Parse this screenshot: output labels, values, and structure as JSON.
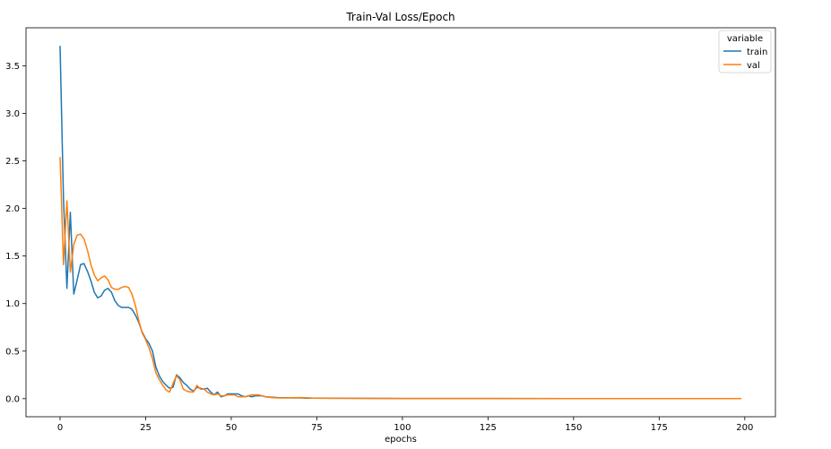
{
  "chart_data": {
    "type": "line",
    "title": "Train-Val Loss/Epoch",
    "xlabel": "epochs",
    "ylabel": "",
    "xlim": [
      -9.95,
      208.95
    ],
    "ylim": [
      -0.19,
      3.9
    ],
    "xticks": [
      0,
      25,
      50,
      75,
      100,
      125,
      150,
      175,
      200
    ],
    "yticks": [
      0.0,
      0.5,
      1.0,
      1.5,
      2.0,
      2.5,
      3.0,
      3.5
    ],
    "ytick_labels": [
      "0.0",
      "0.5",
      "1.0",
      "1.5",
      "2.0",
      "2.5",
      "3.0",
      "3.5"
    ],
    "grid": false,
    "legend": {
      "title": "variable",
      "position": "top-right"
    },
    "series": [
      {
        "name": "train",
        "color": "#1f77b4",
        "points": [
          [
            0,
            3.71
          ],
          [
            1,
            2.1
          ],
          [
            2,
            1.16
          ],
          [
            3,
            1.96
          ],
          [
            4,
            1.1
          ],
          [
            5,
            1.25
          ],
          [
            6,
            1.41
          ],
          [
            7,
            1.42
          ],
          [
            8,
            1.34
          ],
          [
            9,
            1.24
          ],
          [
            10,
            1.12
          ],
          [
            11,
            1.06
          ],
          [
            12,
            1.08
          ],
          [
            13,
            1.14
          ],
          [
            14,
            1.16
          ],
          [
            15,
            1.12
          ],
          [
            16,
            1.03
          ],
          [
            17,
            0.98
          ],
          [
            18,
            0.96
          ],
          [
            19,
            0.96
          ],
          [
            20,
            0.96
          ],
          [
            21,
            0.94
          ],
          [
            22,
            0.88
          ],
          [
            23,
            0.8
          ],
          [
            24,
            0.7
          ],
          [
            25,
            0.63
          ],
          [
            26,
            0.58
          ],
          [
            27,
            0.5
          ],
          [
            28,
            0.33
          ],
          [
            29,
            0.24
          ],
          [
            30,
            0.18
          ],
          [
            31,
            0.14
          ],
          [
            32,
            0.11
          ],
          [
            33,
            0.12
          ],
          [
            34,
            0.25
          ],
          [
            35,
            0.22
          ],
          [
            36,
            0.17
          ],
          [
            37,
            0.14
          ],
          [
            38,
            0.1
          ],
          [
            39,
            0.08
          ],
          [
            40,
            0.12
          ],
          [
            41,
            0.11
          ],
          [
            42,
            0.1
          ],
          [
            43,
            0.11
          ],
          [
            44,
            0.07
          ],
          [
            45,
            0.04
          ],
          [
            46,
            0.07
          ],
          [
            47,
            0.02
          ],
          [
            48,
            0.03
          ],
          [
            49,
            0.05
          ],
          [
            50,
            0.05
          ],
          [
            51,
            0.05
          ],
          [
            52,
            0.05
          ],
          [
            53,
            0.03
          ],
          [
            54,
            0.02
          ],
          [
            55,
            0.03
          ],
          [
            56,
            0.02
          ],
          [
            57,
            0.03
          ],
          [
            58,
            0.03
          ],
          [
            59,
            0.03
          ],
          [
            60,
            0.02
          ],
          [
            62,
            0.015
          ],
          [
            64,
            0.01
          ],
          [
            66,
            0.01
          ],
          [
            68,
            0.008
          ],
          [
            70,
            0.008
          ],
          [
            72,
            0.006
          ],
          [
            75,
            0.005
          ],
          [
            80,
            0.004
          ],
          [
            90,
            0.003
          ],
          [
            100,
            0.002
          ],
          [
            125,
            0.002
          ],
          [
            150,
            0.001
          ],
          [
            175,
            0.001
          ],
          [
            199,
            0.001
          ]
        ]
      },
      {
        "name": "val",
        "color": "#ff7f0e",
        "points": [
          [
            0,
            2.54
          ],
          [
            1,
            1.41
          ],
          [
            2,
            2.08
          ],
          [
            3,
            1.33
          ],
          [
            4,
            1.62
          ],
          [
            5,
            1.72
          ],
          [
            6,
            1.73
          ],
          [
            7,
            1.68
          ],
          [
            8,
            1.56
          ],
          [
            9,
            1.41
          ],
          [
            10,
            1.3
          ],
          [
            11,
            1.24
          ],
          [
            12,
            1.27
          ],
          [
            13,
            1.29
          ],
          [
            14,
            1.25
          ],
          [
            15,
            1.17
          ],
          [
            16,
            1.15
          ],
          [
            17,
            1.15
          ],
          [
            18,
            1.17
          ],
          [
            19,
            1.18
          ],
          [
            20,
            1.17
          ],
          [
            21,
            1.1
          ],
          [
            22,
            0.98
          ],
          [
            23,
            0.82
          ],
          [
            24,
            0.69
          ],
          [
            25,
            0.62
          ],
          [
            26,
            0.53
          ],
          [
            27,
            0.42
          ],
          [
            28,
            0.27
          ],
          [
            29,
            0.2
          ],
          [
            30,
            0.14
          ],
          [
            31,
            0.09
          ],
          [
            32,
            0.07
          ],
          [
            33,
            0.16
          ],
          [
            34,
            0.24
          ],
          [
            35,
            0.2
          ],
          [
            36,
            0.1
          ],
          [
            37,
            0.08
          ],
          [
            38,
            0.07
          ],
          [
            39,
            0.07
          ],
          [
            40,
            0.14
          ],
          [
            41,
            0.1
          ],
          [
            42,
            0.1
          ],
          [
            43,
            0.07
          ],
          [
            44,
            0.05
          ],
          [
            45,
            0.04
          ],
          [
            46,
            0.05
          ],
          [
            47,
            0.03
          ],
          [
            48,
            0.03
          ],
          [
            49,
            0.04
          ],
          [
            50,
            0.04
          ],
          [
            51,
            0.04
          ],
          [
            52,
            0.02
          ],
          [
            53,
            0.02
          ],
          [
            54,
            0.02
          ],
          [
            55,
            0.03
          ],
          [
            56,
            0.04
          ],
          [
            57,
            0.04
          ],
          [
            58,
            0.04
          ],
          [
            59,
            0.03
          ],
          [
            60,
            0.02
          ],
          [
            62,
            0.01
          ],
          [
            64,
            0.008
          ],
          [
            66,
            0.008
          ],
          [
            68,
            0.01
          ],
          [
            70,
            0.012
          ],
          [
            72,
            0.01
          ],
          [
            74,
            0.005
          ],
          [
            76,
            0.004
          ],
          [
            80,
            0.004
          ],
          [
            90,
            0.003
          ],
          [
            100,
            0.002
          ],
          [
            125,
            0.002
          ],
          [
            150,
            0.001
          ],
          [
            175,
            0.001
          ],
          [
            199,
            0.001
          ]
        ]
      }
    ]
  }
}
